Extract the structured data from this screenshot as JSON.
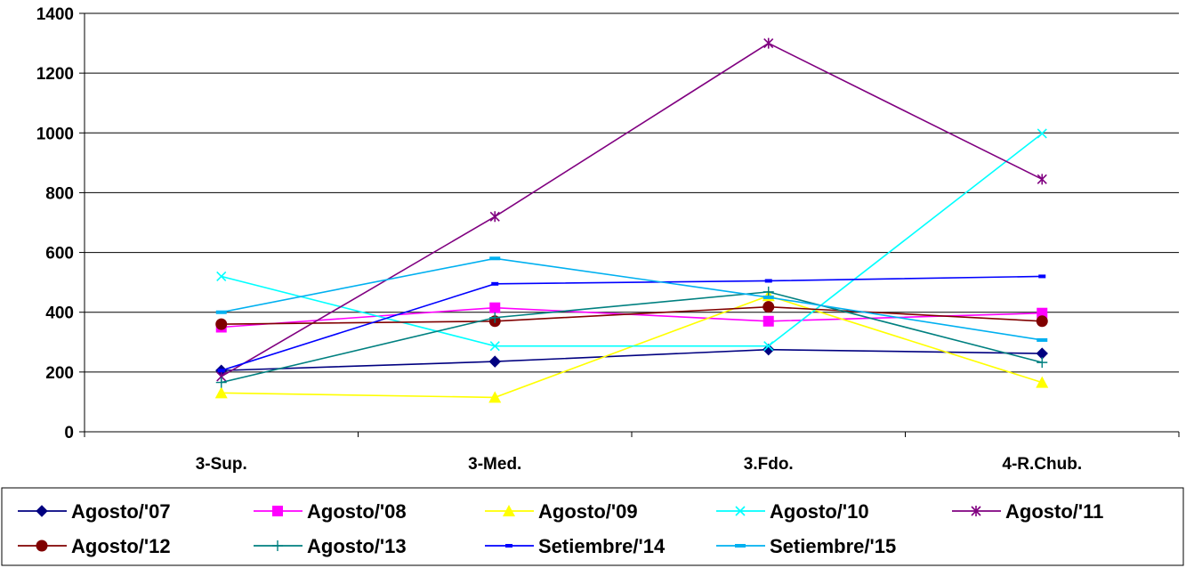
{
  "chart_data": {
    "type": "line",
    "title": "",
    "xlabel": "",
    "ylabel": "",
    "categories": [
      "3-Sup.",
      "3-Med.",
      "3.Fdo.",
      "4-R.Chub."
    ],
    "ylim": [
      0,
      1400
    ],
    "yticks": [
      0,
      200,
      400,
      600,
      800,
      1000,
      1200,
      1400
    ],
    "grid": "horizontal",
    "legend": "bottom",
    "series": [
      {
        "name": "Agosto/'07",
        "color": "#000080",
        "marker": "diamond",
        "values": [
          205,
          235,
          275,
          262
        ]
      },
      {
        "name": "Agosto/'08",
        "color": "#FF00FF",
        "marker": "square",
        "values": [
          350,
          415,
          370,
          397
        ]
      },
      {
        "name": "Agosto/'09",
        "color": "#FFFF00",
        "marker": "triangle",
        "values": [
          130,
          115,
          455,
          165
        ]
      },
      {
        "name": "Agosto/'10",
        "color": "#00FFFF",
        "marker": "x",
        "values": [
          520,
          287,
          287,
          998
        ]
      },
      {
        "name": "Agosto/'11",
        "color": "#800080",
        "marker": "star",
        "values": [
          185,
          720,
          1300,
          845
        ]
      },
      {
        "name": "Agosto/'12",
        "color": "#800000",
        "marker": "circle",
        "values": [
          360,
          370,
          418,
          370
        ]
      },
      {
        "name": "Agosto/'13",
        "color": "#008080",
        "marker": "plus",
        "values": [
          165,
          382,
          468,
          232
        ]
      },
      {
        "name": "Setiembre/'14",
        "color": "#0000FF",
        "marker": "dash",
        "values": [
          205,
          495,
          505,
          520
        ]
      },
      {
        "name": "Setiembre/'15",
        "color": "#00B0F0",
        "marker": "wide-dash",
        "values": [
          400,
          580,
          450,
          307
        ]
      }
    ]
  }
}
